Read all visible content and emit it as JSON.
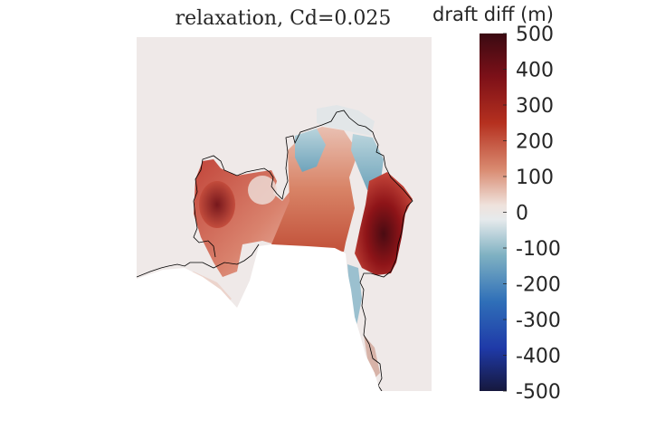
{
  "chart_data": {
    "type": "heatmap",
    "title": "relaxation, Cd=0.025",
    "colorbar": {
      "label": "draft diff (m)",
      "range": [
        -500,
        500
      ],
      "ticks": [
        "500",
        "400",
        "300",
        "200",
        "100",
        "0",
        "-100",
        "-200",
        "-300",
        "-400",
        "-500"
      ],
      "colormap": "diverging blue-white-red",
      "colors": {
        "min": "#15193f",
        "low": "#2148c4",
        "mid_low": "#6fa8bd",
        "center": "#efe9e8",
        "mid_high": "#d98a70",
        "high": "#a81f1f",
        "max": "#3a0a12"
      }
    },
    "background_value": 0,
    "outline_color": "#000000"
  }
}
